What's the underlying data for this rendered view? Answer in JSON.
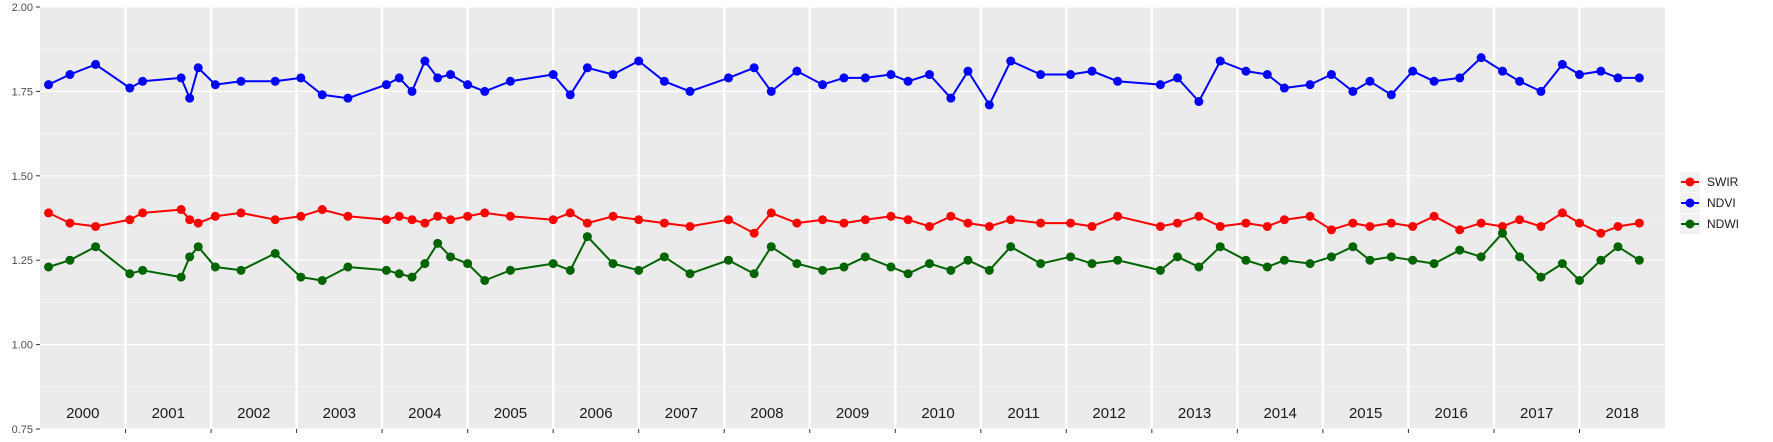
{
  "chart_data": {
    "type": "line",
    "xlabel": "",
    "ylabel": "",
    "title": "",
    "ylim": [
      0.75,
      2.0
    ],
    "xlim": [
      2000,
      2019
    ],
    "y_ticks": [
      "0.75",
      "1.00",
      "1.25",
      "1.50",
      "1.75",
      "2.00"
    ],
    "year_labels": [
      "2000",
      "2001",
      "2002",
      "2003",
      "2004",
      "2005",
      "2006",
      "2007",
      "2008",
      "2009",
      "2010",
      "2011",
      "2012",
      "2013",
      "2014",
      "2015",
      "2016",
      "2017",
      "2018"
    ],
    "grid": true,
    "legend_position": "right",
    "x": [
      2000.1,
      2000.35,
      2000.65,
      2001.05,
      2001.2,
      2001.65,
      2001.75,
      2001.85,
      2002.05,
      2002.35,
      2002.75,
      2003.05,
      2003.3,
      2003.6,
      2004.05,
      2004.2,
      2004.35,
      2004.5,
      2004.65,
      2004.8,
      2005.0,
      2005.2,
      2005.5,
      2006.0,
      2006.2,
      2006.4,
      2006.7,
      2007.0,
      2007.3,
      2007.6,
      2008.05,
      2008.35,
      2008.55,
      2008.85,
      2009.15,
      2009.4,
      2009.65,
      2009.95,
      2010.15,
      2010.4,
      2010.65,
      2010.85,
      2011.1,
      2011.35,
      2011.7,
      2012.05,
      2012.3,
      2012.6,
      2013.1,
      2013.3,
      2013.55,
      2013.8,
      2014.1,
      2014.35,
      2014.55,
      2014.85,
      2015.1,
      2015.35,
      2015.55,
      2015.8,
      2016.05,
      2016.3,
      2016.6,
      2016.85,
      2017.1,
      2017.3,
      2017.55,
      2017.8,
      2018.0,
      2018.25,
      2018.45,
      2018.7
    ],
    "series": [
      {
        "name": "SWIR",
        "color": "#ff0000",
        "values": [
          1.39,
          1.36,
          1.35,
          1.37,
          1.39,
          1.4,
          1.37,
          1.36,
          1.38,
          1.39,
          1.37,
          1.38,
          1.4,
          1.38,
          1.37,
          1.38,
          1.37,
          1.36,
          1.38,
          1.37,
          1.38,
          1.39,
          1.38,
          1.37,
          1.39,
          1.36,
          1.38,
          1.37,
          1.36,
          1.35,
          1.37,
          1.33,
          1.39,
          1.36,
          1.37,
          1.36,
          1.37,
          1.38,
          1.37,
          1.35,
          1.38,
          1.36,
          1.35,
          1.37,
          1.36,
          1.36,
          1.35,
          1.38,
          1.35,
          1.36,
          1.38,
          1.35,
          1.36,
          1.35,
          1.37,
          1.38,
          1.34,
          1.36,
          1.35,
          1.36,
          1.35,
          1.38,
          1.34,
          1.36,
          1.35,
          1.37,
          1.35,
          1.39,
          1.36,
          1.33,
          1.35,
          1.36
        ]
      },
      {
        "name": "NDVI",
        "color": "#0000ff",
        "values": [
          1.77,
          1.8,
          1.83,
          1.76,
          1.78,
          1.79,
          1.73,
          1.82,
          1.77,
          1.78,
          1.78,
          1.79,
          1.74,
          1.73,
          1.77,
          1.79,
          1.75,
          1.84,
          1.79,
          1.8,
          1.77,
          1.75,
          1.78,
          1.8,
          1.74,
          1.82,
          1.8,
          1.84,
          1.78,
          1.75,
          1.79,
          1.82,
          1.75,
          1.81,
          1.77,
          1.79,
          1.79,
          1.8,
          1.78,
          1.8,
          1.73,
          1.81,
          1.71,
          1.84,
          1.8,
          1.8,
          1.81,
          1.78,
          1.77,
          1.79,
          1.72,
          1.84,
          1.81,
          1.8,
          1.76,
          1.77,
          1.8,
          1.75,
          1.78,
          1.74,
          1.81,
          1.78,
          1.79,
          1.85,
          1.81,
          1.78,
          1.75,
          1.83,
          1.8,
          1.81,
          1.79,
          1.79
        ]
      },
      {
        "name": "NDWI",
        "color": "#006400",
        "values": [
          1.23,
          1.25,
          1.29,
          1.21,
          1.22,
          1.2,
          1.26,
          1.29,
          1.23,
          1.22,
          1.27,
          1.2,
          1.19,
          1.23,
          1.22,
          1.21,
          1.2,
          1.24,
          1.3,
          1.26,
          1.24,
          1.19,
          1.22,
          1.24,
          1.22,
          1.32,
          1.24,
          1.22,
          1.26,
          1.21,
          1.25,
          1.21,
          1.29,
          1.24,
          1.22,
          1.23,
          1.26,
          1.23,
          1.21,
          1.24,
          1.22,
          1.25,
          1.22,
          1.29,
          1.24,
          1.26,
          1.24,
          1.25,
          1.22,
          1.26,
          1.23,
          1.29,
          1.25,
          1.23,
          1.25,
          1.24,
          1.26,
          1.29,
          1.25,
          1.26,
          1.25,
          1.24,
          1.28,
          1.26,
          1.33,
          1.26,
          1.2,
          1.24,
          1.19,
          1.25,
          1.29,
          1.25
        ]
      }
    ]
  }
}
